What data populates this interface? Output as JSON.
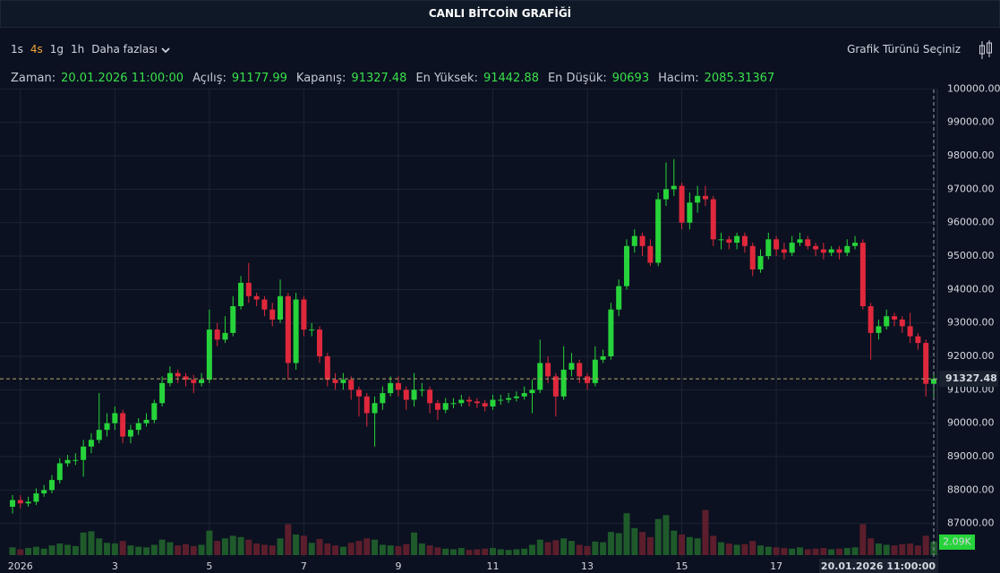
{
  "header": {
    "title": "CANLI BİTCOİN GRAFİĞİ"
  },
  "toolbar": {
    "intervals": [
      "1s",
      "4s",
      "1g",
      "1h"
    ],
    "selected": "4s",
    "more": "Daha fazlası",
    "chart_type": "Grafik Türünü Seçiniz"
  },
  "info": {
    "time_label": "Zaman:",
    "open_label": "Açılış:",
    "close_label": "Kapanış:",
    "high_label": "En Yüksek:",
    "low_label": "En Düşük:",
    "volume_label": "Hacim:",
    "time": "20.01.2026 11:00:00"
  },
  "chart_data": {
    "type": "candlestick",
    "up_color": "#27d33a",
    "down_color": "#e0283c",
    "up_volume_color": "#1f5a2b",
    "down_volume_color": "#5c1e2c",
    "grid": true,
    "ylim": [
      86000,
      101000
    ],
    "yticks": [
      {
        "value": 87000,
        "label": "87000.00"
      },
      {
        "value": 88000,
        "label": "88000.00"
      },
      {
        "value": 89000,
        "label": "89000.00"
      },
      {
        "value": 90000,
        "label": "90000.00"
      },
      {
        "value": 91000,
        "label": "91000.00"
      },
      {
        "value": 92000,
        "label": "92000.00"
      },
      {
        "value": 93000,
        "label": "93000.00"
      },
      {
        "value": 94000,
        "label": "94000.00"
      },
      {
        "value": 95000,
        "label": "95000.00"
      },
      {
        "value": 96000,
        "label": "96000.00"
      },
      {
        "value": 97000,
        "label": "97000.00"
      },
      {
        "value": 98000,
        "label": "98000.00"
      },
      {
        "value": 99000,
        "label": "99000.00"
      },
      {
        "value": 100000,
        "label": "100000.00"
      }
    ],
    "xticks": [
      {
        "value": 1,
        "label": "2026"
      },
      {
        "value": 13,
        "label": "3"
      },
      {
        "value": 25,
        "label": "5"
      },
      {
        "value": 37,
        "label": "7"
      },
      {
        "value": 49,
        "label": "9"
      },
      {
        "value": 61,
        "label": "11"
      },
      {
        "value": 73,
        "label": "13"
      },
      {
        "value": 85,
        "label": "15"
      },
      {
        "value": 97,
        "label": "17"
      }
    ],
    "open": [
      87500,
      87700,
      87600,
      87650,
      87900,
      88000,
      88300,
      88800,
      88900,
      88900,
      89300,
      89500,
      89800,
      90000,
      90300,
      89600,
      89800,
      90000,
      90100,
      90600,
      91200,
      91500,
      91400,
      91300,
      91200,
      91300,
      92800,
      92500,
      92700,
      93500,
      94200,
      93800,
      93700,
      93400,
      93100,
      93800,
      91800,
      93700,
      92800,
      92800,
      92000,
      91300,
      91200,
      91300,
      91000,
      90800,
      90300,
      90600,
      90900,
      91200,
      91000,
      90700,
      91000,
      91000,
      90600,
      90400,
      90600,
      90600,
      90700,
      90650,
      90600,
      90500,
      90700,
      90700,
      90750,
      90800,
      90900,
      91000,
      91800,
      91400,
      90800,
      91600,
      91800,
      91400,
      91200,
      91900,
      92000,
      93400,
      94100,
      95300,
      95600,
      95300,
      94800,
      96700,
      97000,
      97100,
      96000,
      96600,
      96800,
      96700,
      95500,
      95500,
      95400,
      95600,
      95300,
      94600,
      95000,
      95500,
      95200,
      95100,
      95400,
      95500,
      95300,
      95200,
      95100,
      95200,
      95100,
      95300,
      95400,
      93500,
      92700,
      92900,
      93200,
      93100,
      92900,
      92600,
      92400,
      91177.99
    ],
    "high": [
      87850,
      87850,
      87800,
      88050,
      88150,
      88450,
      88950,
      89050,
      89100,
      89500,
      89700,
      90900,
      90300,
      90500,
      90400,
      89950,
      90150,
      90300,
      90700,
      91400,
      91700,
      91600,
      91500,
      91450,
      91500,
      93400,
      93000,
      93200,
      93800,
      94400,
      94800,
      93900,
      93800,
      93600,
      94300,
      93900,
      93900,
      93800,
      93000,
      92900,
      92100,
      91500,
      91500,
      91400,
      91100,
      90900,
      90800,
      91100,
      91400,
      91400,
      91100,
      91500,
      91200,
      91100,
      90700,
      90750,
      90750,
      90850,
      90800,
      90750,
      90700,
      90850,
      90850,
      90900,
      90950,
      91100,
      91300,
      92500,
      92000,
      91500,
      92300,
      92100,
      91900,
      91500,
      92300,
      92200,
      93600,
      94300,
      95500,
      95800,
      95700,
      95500,
      96900,
      97800,
      97900,
      97200,
      96900,
      97100,
      97100,
      96800,
      95700,
      95600,
      95700,
      95700,
      95400,
      95200,
      95700,
      95600,
      95400,
      95600,
      95700,
      95600,
      95400,
      95400,
      95300,
      95300,
      95500,
      95600,
      95500,
      93600,
      93100,
      93400,
      93300,
      93200,
      93300,
      92700,
      92500,
      91442.88
    ],
    "low": [
      87300,
      87450,
      87500,
      87550,
      87800,
      87900,
      88200,
      88700,
      88750,
      88400,
      89100,
      89400,
      89600,
      89800,
      89400,
      89400,
      89650,
      89900,
      90000,
      90500,
      91100,
      91200,
      91100,
      90900,
      91100,
      91200,
      92300,
      92400,
      92600,
      93400,
      93600,
      93500,
      93200,
      92900,
      93000,
      91300,
      91600,
      92600,
      92600,
      91800,
      91100,
      91000,
      91000,
      90700,
      90200,
      89900,
      89300,
      90400,
      90800,
      90800,
      90400,
      90500,
      90800,
      90300,
      90100,
      90300,
      90450,
      90500,
      90500,
      90450,
      90350,
      90400,
      90550,
      90600,
      90650,
      90700,
      90300,
      90900,
      91200,
      90200,
      90700,
      91400,
      91200,
      91000,
      91100,
      91800,
      91900,
      93200,
      94000,
      95100,
      95000,
      94700,
      94700,
      96500,
      96800,
      95800,
      95800,
      96300,
      96500,
      95300,
      95200,
      95200,
      95200,
      95100,
      94400,
      94500,
      94900,
      95000,
      94900,
      95000,
      95300,
      95200,
      95000,
      94900,
      95000,
      94900,
      95000,
      95200,
      93400,
      91900,
      92500,
      92800,
      92900,
      92700,
      92400,
      92200,
      90800,
      90693
    ],
    "close": [
      87700,
      87600,
      87650,
      87900,
      88000,
      88300,
      88800,
      88900,
      88900,
      89300,
      89500,
      89800,
      90000,
      90300,
      89600,
      89800,
      90000,
      90100,
      90600,
      91200,
      91500,
      91400,
      91300,
      91200,
      91300,
      92800,
      92500,
      92700,
      93500,
      94200,
      93800,
      93700,
      93400,
      93100,
      93800,
      91800,
      93700,
      92800,
      92800,
      92000,
      91300,
      91200,
      91300,
      91000,
      90800,
      90300,
      90600,
      90900,
      91200,
      91000,
      90700,
      91000,
      91000,
      90600,
      90400,
      90600,
      90600,
      90700,
      90650,
      90600,
      90500,
      90700,
      90700,
      90750,
      90800,
      90900,
      91000,
      91800,
      91400,
      90800,
      91600,
      91800,
      91400,
      91200,
      91900,
      92000,
      93400,
      94100,
      95300,
      95600,
      95300,
      94800,
      96700,
      97000,
      97100,
      96000,
      96600,
      96800,
      96700,
      95500,
      95500,
      95400,
      95600,
      95300,
      94600,
      95000,
      95500,
      95200,
      95100,
      95400,
      95500,
      95300,
      95200,
      95100,
      95200,
      95100,
      95300,
      95400,
      93500,
      92700,
      92900,
      93200,
      93100,
      92900,
      92600,
      92400,
      91177.99,
      91327.48
    ],
    "volume": [
      1200,
      900,
      1100,
      1300,
      1000,
      1500,
      1800,
      1600,
      1400,
      3500,
      3700,
      2600,
      1900,
      1800,
      2200,
      1500,
      1300,
      1200,
      1600,
      2400,
      2000,
      1500,
      1700,
      1400,
      1600,
      3800,
      2200,
      2600,
      3000,
      2800,
      2400,
      1800,
      1600,
      1500,
      2600,
      4800,
      3200,
      3000,
      1900,
      2500,
      1800,
      1500,
      1300,
      1900,
      2200,
      2600,
      2400,
      1600,
      1500,
      1400,
      1700,
      3500,
      1800,
      1500,
      1200,
      1000,
      900,
      1100,
      800,
      900,
      1000,
      1100,
      900,
      800,
      900,
      1000,
      1600,
      2400,
      2000,
      2300,
      2600,
      2200,
      1600,
      1400,
      2100,
      2000,
      3600,
      3400,
      6500,
      4200,
      3600,
      2800,
      5600,
      6200,
      3800,
      3200,
      2800,
      2600,
      7000,
      3000,
      2000,
      1800,
      1600,
      1700,
      2200,
      1500,
      1300,
      1200,
      1100,
      1000,
      1200,
      900,
      1000,
      1100,
      900,
      1000,
      1100,
      1200,
      4800,
      2600,
      1800,
      1600,
      1500,
      1700,
      1800,
      1500,
      3000,
      2085.31367
    ],
    "volume_label": "2.09K"
  }
}
